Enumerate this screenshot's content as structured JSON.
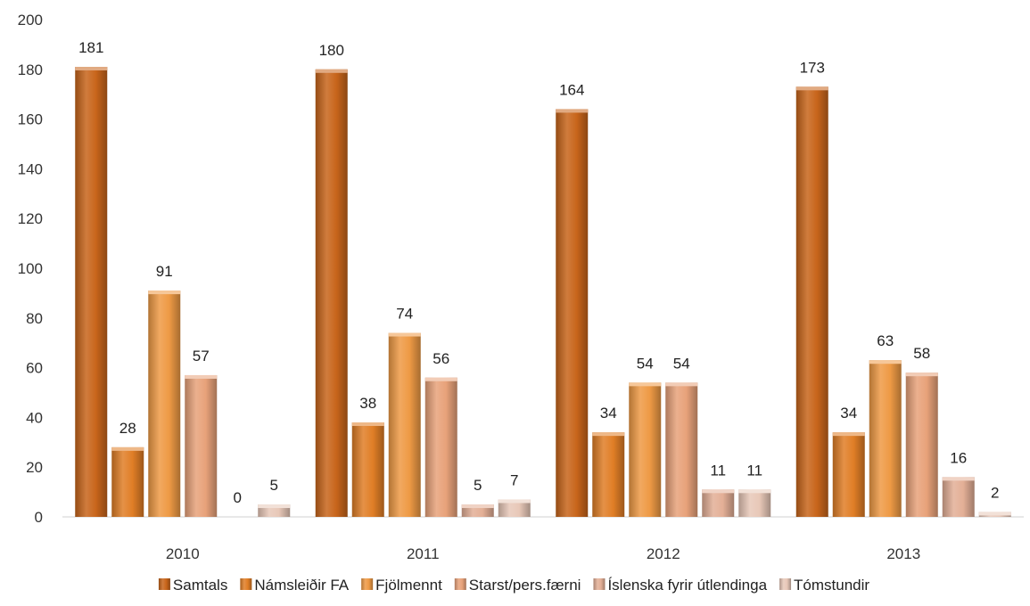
{
  "chart_data": {
    "type": "bar",
    "title": "",
    "xlabel": "",
    "ylabel": "",
    "ylim": [
      0,
      200
    ],
    "yticks": [
      0,
      20,
      40,
      60,
      80,
      100,
      120,
      140,
      160,
      180,
      200
    ],
    "grid": false,
    "legend_position": "bottom",
    "categories": [
      "2010",
      "2011",
      "2012",
      "2013"
    ],
    "series": [
      {
        "name": "Samtals",
        "values": [
          181,
          180,
          164,
          173
        ],
        "color": "#C8651B"
      },
      {
        "name": "Námsleiðir FA",
        "values": [
          28,
          38,
          34,
          34
        ],
        "color": "#E07E26"
      },
      {
        "name": "Fjölmennt",
        "values": [
          91,
          74,
          54,
          63
        ],
        "color": "#EE9A45"
      },
      {
        "name": "Starst/pers.færni",
        "values": [
          57,
          56,
          54,
          58
        ],
        "color": "#E8A27A"
      },
      {
        "name": "Íslenska fyrir útlendinga",
        "values": [
          0,
          5,
          11,
          16
        ],
        "color": "#E3AF96"
      },
      {
        "name": "Tómstundir",
        "values": [
          5,
          7,
          11,
          2
        ],
        "color": "#E8C8B8"
      }
    ]
  }
}
